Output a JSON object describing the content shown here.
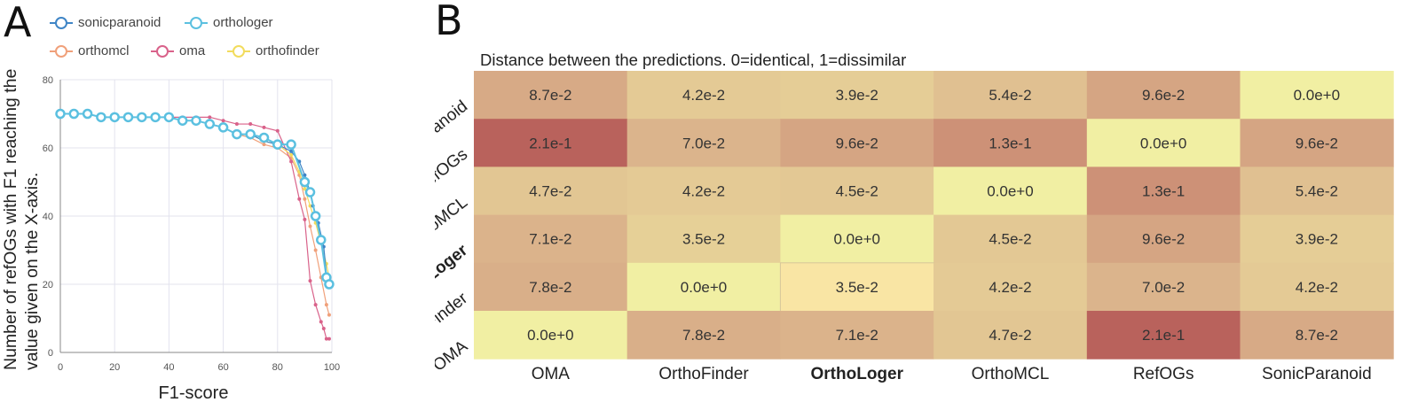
{
  "panel_a": {
    "letter": "A",
    "legend": [
      {
        "label": "sonicparanoid",
        "color": "#3f85c6"
      },
      {
        "label": "orthologer",
        "color": "#5bc0e0"
      },
      {
        "label": "orthomcl",
        "color": "#f0a07a"
      },
      {
        "label": "oma",
        "color": "#d9628a"
      },
      {
        "label": "orthofinder",
        "color": "#f2dc5d"
      }
    ]
  },
  "panel_b": {
    "letter": "B"
  },
  "chart_data": [
    {
      "type": "line",
      "title": "",
      "xlabel": "F1-score",
      "ylabel": "Number of refOGs with F1 reaching the value given on the X-axis.",
      "xlim": [
        0,
        100
      ],
      "ylim": [
        0,
        80
      ],
      "xticks": [
        0,
        20,
        40,
        60,
        80,
        100
      ],
      "yticks": [
        0,
        20,
        40,
        60,
        80
      ],
      "grid": true,
      "legend_position": "top",
      "series": [
        {
          "name": "sonicparanoid",
          "color": "#3f85c6",
          "x": [
            0,
            5,
            10,
            15,
            20,
            25,
            30,
            35,
            40,
            45,
            50,
            55,
            60,
            65,
            70,
            75,
            80,
            85,
            88,
            90,
            92,
            93,
            95,
            97,
            98,
            99
          ],
          "y": [
            70,
            70,
            70,
            69,
            69,
            69,
            69,
            69,
            69,
            68,
            68,
            67,
            66,
            64,
            64,
            62,
            61,
            59,
            56,
            52,
            47,
            43,
            38,
            31,
            23,
            20
          ]
        },
        {
          "name": "orthologer",
          "color": "#5bc0e0",
          "x": [
            0,
            5,
            10,
            15,
            20,
            25,
            30,
            35,
            40,
            45,
            50,
            55,
            60,
            65,
            70,
            75,
            80,
            85,
            90,
            92,
            94,
            96,
            98,
            99
          ],
          "y": [
            70,
            70,
            70,
            69,
            69,
            69,
            69,
            69,
            69,
            68,
            68,
            67,
            66,
            64,
            64,
            63,
            61,
            61,
            50,
            47,
            40,
            33,
            22,
            20
          ]
        },
        {
          "name": "orthomcl",
          "color": "#f0a07a",
          "x": [
            0,
            5,
            10,
            15,
            20,
            25,
            30,
            35,
            40,
            45,
            50,
            55,
            60,
            65,
            70,
            75,
            80,
            85,
            88,
            90,
            92,
            94,
            96,
            98,
            99
          ],
          "y": [
            70,
            70,
            70,
            69,
            69,
            69,
            69,
            69,
            69,
            68,
            68,
            67,
            66,
            64,
            63,
            61,
            60,
            57,
            52,
            45,
            37,
            30,
            22,
            14,
            11
          ]
        },
        {
          "name": "oma",
          "color": "#d9628a",
          "x": [
            0,
            5,
            10,
            15,
            20,
            25,
            30,
            35,
            40,
            45,
            50,
            55,
            60,
            65,
            70,
            75,
            80,
            85,
            88,
            90,
            92,
            94,
            96,
            97,
            98,
            99
          ],
          "y": [
            70,
            70,
            70,
            69,
            69,
            69,
            69,
            69,
            69,
            69,
            69,
            69,
            68,
            67,
            67,
            66,
            65,
            56,
            45,
            39,
            21,
            14,
            9,
            7,
            4,
            4
          ]
        },
        {
          "name": "orthofinder",
          "color": "#f2dc5d",
          "x": [
            0,
            5,
            10,
            15,
            20,
            25,
            30,
            35,
            40,
            45,
            50,
            55,
            60,
            65,
            70,
            75,
            80,
            85,
            88,
            90,
            92,
            94,
            96,
            98,
            99
          ],
          "y": [
            70,
            70,
            70,
            69,
            69,
            69,
            69,
            69,
            69,
            68,
            68,
            67,
            66,
            64,
            64,
            62,
            61,
            58,
            53,
            48,
            43,
            38,
            32,
            26,
            22
          ]
        }
      ]
    },
    {
      "type": "heatmap",
      "title": "Distance between the predictions. 0=identical, 1=dissimilar",
      "x_categories": [
        "OMA",
        "OrthoFinder",
        "OrthoLoger",
        "OrthoMCL",
        "RefOGs",
        "SonicParanoid"
      ],
      "y_categories": [
        "SonicParanoid",
        "RefOGs",
        "OrthoMCL",
        "OrthoLoger",
        "OrthoFinder",
        "OMA"
      ],
      "bold_category": "OrthoLoger",
      "highlighted_cell": {
        "row": 4,
        "col": 2
      },
      "color_scale": {
        "min_color": "#f1efa3",
        "max_color": "#b9625c"
      },
      "values": [
        [
          "8.7e-2",
          "4.2e-2",
          "3.9e-2",
          "5.4e-2",
          "9.6e-2",
          "0.0e+0"
        ],
        [
          "2.1e-1",
          "7.0e-2",
          "9.6e-2",
          "1.3e-1",
          "0.0e+0",
          "9.6e-2"
        ],
        [
          "4.7e-2",
          "4.2e-2",
          "4.5e-2",
          "0.0e+0",
          "1.3e-1",
          "5.4e-2"
        ],
        [
          "7.1e-2",
          "3.5e-2",
          "0.0e+0",
          "4.5e-2",
          "9.6e-2",
          "3.9e-2"
        ],
        [
          "7.8e-2",
          "0.0e+0",
          "3.5e-2",
          "4.2e-2",
          "7.0e-2",
          "4.2e-2"
        ],
        [
          "0.0e+0",
          "7.8e-2",
          "7.1e-2",
          "4.7e-2",
          "2.1e-1",
          "8.7e-2"
        ]
      ]
    }
  ]
}
